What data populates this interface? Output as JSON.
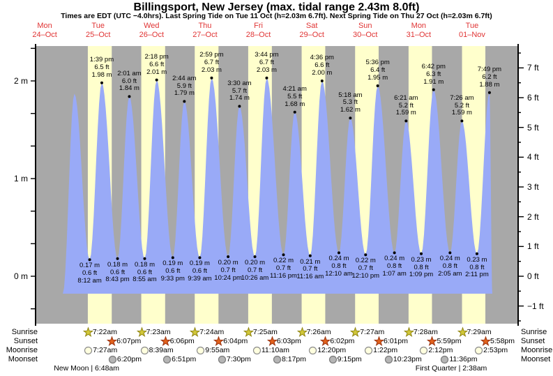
{
  "title": "Billingsport, New Jersey (max. tidal range 2.43m 8.0ft)",
  "subtitle": "Times are EDT (UTC −4.0hrs). Last Spring Tide on Tue 11 Oct (h=2.03m 6.7ft). Next Spring Tide on Thu 27 Oct (h=2.03m 6.7ft)",
  "days": [
    {
      "name": "Mon",
      "date": "24–Oct"
    },
    {
      "name": "Tue",
      "date": "25–Oct"
    },
    {
      "name": "Wed",
      "date": "26–Oct"
    },
    {
      "name": "Thu",
      "date": "27–Oct"
    },
    {
      "name": "Fri",
      "date": "28–Oct"
    },
    {
      "name": "Sat",
      "date": "29–Oct"
    },
    {
      "name": "Sun",
      "date": "30–Oct"
    },
    {
      "name": "Mon",
      "date": "31–Oct"
    },
    {
      "name": "Tue",
      "date": "01–Nov"
    }
  ],
  "axes": {
    "left_labels": [
      "2 m",
      "1 m",
      "0 m"
    ],
    "left_values_m": [
      2,
      1,
      0
    ],
    "right_labels": [
      "7 ft",
      "6 ft",
      "5 ft",
      "4 ft",
      "3 ft",
      "2 ft",
      "1 ft",
      "0 ft",
      "−1 ft"
    ],
    "right_values_ft": [
      7,
      6,
      5,
      4,
      3,
      2,
      1,
      0,
      -1
    ]
  },
  "chart_data": {
    "type": "area",
    "series_name": "tide height",
    "ylabel_left": "m",
    "ylabel_right": "ft",
    "ylim_m": [
      -0.49,
      2.36
    ],
    "ylim_ft": [
      -1.6,
      7.75
    ],
    "categories": [
      "Mon 24–Oct",
      "Tue 25–Oct",
      "Wed 26–Oct",
      "Thu 27–Oct",
      "Fri 28–Oct",
      "Sat 29–Oct",
      "Sun 30–Oct",
      "Mon 31–Oct",
      "Tue 01–Nov"
    ],
    "events": [
      {
        "day": 1,
        "time": "1:21 am",
        "kind": "high",
        "height_m": 1.87,
        "height_ft": null,
        "labeled": false
      },
      {
        "day": 1,
        "time": "8:12 am",
        "kind": "low",
        "height_m": 0.17,
        "height_ft": 0.6,
        "labeled": true
      },
      {
        "day": 1,
        "time": "1:39 pm",
        "kind": "high",
        "height_m": 1.98,
        "height_ft": 6.5,
        "labeled": true
      },
      {
        "day": 1,
        "time": "8:43 pm",
        "kind": "low",
        "height_m": 0.18,
        "height_ft": 0.6,
        "labeled": true
      },
      {
        "day": 2,
        "time": "2:01 am",
        "kind": "high",
        "height_m": 1.84,
        "height_ft": 6.0,
        "labeled": true
      },
      {
        "day": 2,
        "time": "8:55 am",
        "kind": "low",
        "height_m": 0.18,
        "height_ft": 0.6,
        "labeled": true
      },
      {
        "day": 2,
        "time": "2:18 pm",
        "kind": "high",
        "height_m": 2.01,
        "height_ft": 6.6,
        "labeled": true
      },
      {
        "day": 2,
        "time": "9:33 pm",
        "kind": "low",
        "height_m": 0.19,
        "height_ft": 0.6,
        "labeled": true
      },
      {
        "day": 3,
        "time": "2:44 am",
        "kind": "high",
        "height_m": 1.79,
        "height_ft": 5.9,
        "labeled": true
      },
      {
        "day": 3,
        "time": "9:39 am",
        "kind": "low",
        "height_m": 0.19,
        "height_ft": 0.6,
        "labeled": true
      },
      {
        "day": 3,
        "time": "2:59 pm",
        "kind": "high",
        "height_m": 2.03,
        "height_ft": 6.7,
        "labeled": true
      },
      {
        "day": 3,
        "time": "10:24 pm",
        "kind": "low",
        "height_m": 0.2,
        "height_ft": 0.7,
        "labeled": true
      },
      {
        "day": 4,
        "time": "3:30 am",
        "kind": "high",
        "height_m": 1.74,
        "height_ft": 5.7,
        "labeled": true
      },
      {
        "day": 4,
        "time": "10:26 am",
        "kind": "low",
        "height_m": 0.2,
        "height_ft": 0.7,
        "labeled": true
      },
      {
        "day": 4,
        "time": "3:44 pm",
        "kind": "high",
        "height_m": 2.03,
        "height_ft": 6.7,
        "labeled": true
      },
      {
        "day": 4,
        "time": "11:16 pm",
        "kind": "low",
        "height_m": 0.22,
        "height_ft": 0.7,
        "labeled": true
      },
      {
        "day": 5,
        "time": "4:21 am",
        "kind": "high",
        "height_m": 1.68,
        "height_ft": 5.5,
        "labeled": true
      },
      {
        "day": 5,
        "time": "11:16 am",
        "kind": "low",
        "height_m": 0.21,
        "height_ft": 0.7,
        "labeled": true
      },
      {
        "day": 5,
        "time": "4:36 pm",
        "kind": "high",
        "height_m": 2.0,
        "height_ft": 6.6,
        "labeled": true
      },
      {
        "day": 6,
        "time": "12:10 am",
        "kind": "low",
        "height_m": 0.24,
        "height_ft": 0.8,
        "labeled": true
      },
      {
        "day": 6,
        "time": "5:18 am",
        "kind": "high",
        "height_m": 1.62,
        "height_ft": 5.3,
        "labeled": true
      },
      {
        "day": 6,
        "time": "12:10 pm",
        "kind": "low",
        "height_m": 0.22,
        "height_ft": 0.7,
        "labeled": true
      },
      {
        "day": 6,
        "time": "5:36 pm",
        "kind": "high",
        "height_m": 1.95,
        "height_ft": 6.4,
        "labeled": true
      },
      {
        "day": 7,
        "time": "1:07 am",
        "kind": "low",
        "height_m": 0.24,
        "height_ft": 0.8,
        "labeled": true
      },
      {
        "day": 7,
        "time": "6:21 am",
        "kind": "high",
        "height_m": 1.59,
        "height_ft": 5.2,
        "labeled": true
      },
      {
        "day": 7,
        "time": "1:09 pm",
        "kind": "low",
        "height_m": 0.23,
        "height_ft": 0.8,
        "labeled": true
      },
      {
        "day": 7,
        "time": "6:42 pm",
        "kind": "high",
        "height_m": 1.91,
        "height_ft": 6.3,
        "labeled": true
      },
      {
        "day": 8,
        "time": "2:05 am",
        "kind": "low",
        "height_m": 0.24,
        "height_ft": 0.8,
        "labeled": true
      },
      {
        "day": 8,
        "time": "7:26 am",
        "kind": "high",
        "height_m": 1.59,
        "height_ft": 5.2,
        "labeled": true
      },
      {
        "day": 8,
        "time": "2:11 pm",
        "kind": "low",
        "height_m": 0.23,
        "height_ft": 0.8,
        "labeled": true
      },
      {
        "day": 8,
        "time": "7:49 pm",
        "kind": "high",
        "height_m": 1.88,
        "height_ft": 6.2,
        "labeled": true
      }
    ]
  },
  "sun_moon": {
    "rows": [
      {
        "label": "Sunrise",
        "icon": "sunrise-star",
        "events": [
          {
            "day": 1,
            "time": "7:22am"
          },
          {
            "day": 2,
            "time": "7:23am"
          },
          {
            "day": 3,
            "time": "7:24am"
          },
          {
            "day": 4,
            "time": "7:25am"
          },
          {
            "day": 5,
            "time": "7:26am"
          },
          {
            "day": 6,
            "time": "7:27am"
          },
          {
            "day": 7,
            "time": "7:28am"
          },
          {
            "day": 8,
            "time": "7:29am"
          }
        ]
      },
      {
        "label": "Sunset",
        "icon": "sunset-star",
        "events": [
          {
            "day": 1,
            "time": "6:07pm"
          },
          {
            "day": 2,
            "time": "6:06pm"
          },
          {
            "day": 3,
            "time": "6:04pm"
          },
          {
            "day": 4,
            "time": "6:03pm"
          },
          {
            "day": 5,
            "time": "6:02pm"
          },
          {
            "day": 6,
            "time": "6:01pm"
          },
          {
            "day": 7,
            "time": "5:59pm"
          },
          {
            "day": 8,
            "time": "5:58pm"
          }
        ]
      },
      {
        "label": "Moonrise",
        "icon": "moonrise-circle",
        "events": [
          {
            "day": 1,
            "time": "7:27am"
          },
          {
            "day": 2,
            "time": "8:39am"
          },
          {
            "day": 3,
            "time": "9:55am"
          },
          {
            "day": 4,
            "time": "11:10am"
          },
          {
            "day": 5,
            "time": "12:20pm"
          },
          {
            "day": 6,
            "time": "1:22pm"
          },
          {
            "day": 7,
            "time": "2:12pm"
          },
          {
            "day": 8,
            "time": "2:53pm"
          }
        ]
      },
      {
        "label": "Moonset",
        "icon": "moonset-circle",
        "events": [
          {
            "day": 1,
            "time": "6:20pm"
          },
          {
            "day": 2,
            "time": "6:51pm"
          },
          {
            "day": 3,
            "time": "7:30pm"
          },
          {
            "day": 4,
            "time": "8:17pm"
          },
          {
            "day": 5,
            "time": "9:15pm"
          },
          {
            "day": 6,
            "time": "10:23pm"
          },
          {
            "day": 7,
            "time": "11:36pm"
          }
        ]
      }
    ],
    "phases": [
      {
        "label": "New Moon",
        "time": "6:48am",
        "day": 1
      },
      {
        "label": "First Quarter",
        "time": "2:38am",
        "day": 8
      }
    ]
  },
  "colors": {
    "night_band": "#a8a8a8",
    "daylight_band": "#ffffcc",
    "tide_fill": "#99aaf7",
    "axis": "#000000",
    "date_label": "#e03434",
    "sunrise_star_fill": "#d2c83a",
    "sunrise_star_stroke": "#8f8410",
    "sunset_star_fill": "#e2611c",
    "sunset_star_stroke": "#993311",
    "moonrise_fill": "#ffffdf",
    "moonrise_stroke": "#8c8c8c",
    "moonset_fill": "#b5b5b5",
    "moonset_stroke": "#7a7a7a"
  }
}
